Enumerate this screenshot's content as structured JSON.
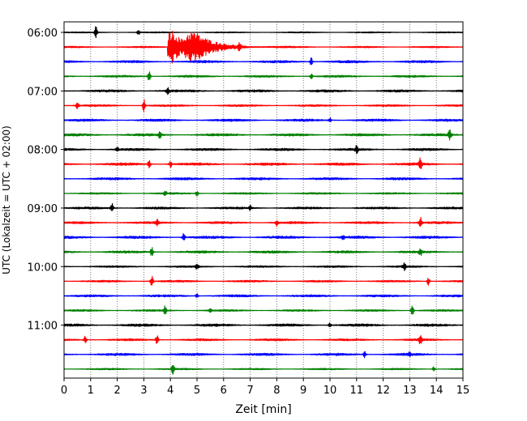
{
  "chart_data": {
    "type": "line",
    "title": "",
    "xlabel": "Zeit  [min]",
    "ylabel": "UTC (Lokalzeit = UTC + 02:00)",
    "xlim": [
      0,
      15
    ],
    "x_ticks": [
      "0",
      "1",
      "2",
      "3",
      "4",
      "5",
      "6",
      "7",
      "8",
      "9",
      "10",
      "11",
      "12",
      "13",
      "14",
      "15"
    ],
    "y_ticks": [
      "06:00",
      "07:00",
      "08:00",
      "09:00",
      "10:00",
      "11:00"
    ],
    "grid": "vertical-dotted",
    "trace_interval_minutes": 15,
    "first_trace": "06:00",
    "colors": [
      "#000000",
      "#ff0000",
      "#0000ff",
      "#008000"
    ],
    "series": [
      {
        "start": "06:00",
        "color": "#000000",
        "baseline": 0.8,
        "events": [
          [
            1.2,
            8
          ],
          [
            2.8,
            3
          ]
        ]
      },
      {
        "start": "06:15",
        "color": "#ff0000",
        "baseline": 1.0,
        "events": [
          [
            4.8,
            20,
            "quake"
          ],
          [
            6.6,
            5
          ]
        ]
      },
      {
        "start": "06:30",
        "color": "#0000ff",
        "baseline": 1.5,
        "events": [
          [
            9.3,
            5
          ]
        ]
      },
      {
        "start": "06:45",
        "color": "#008000",
        "baseline": 1.3,
        "events": [
          [
            3.2,
            6
          ],
          [
            9.3,
            3
          ]
        ]
      },
      {
        "start": "07:00",
        "color": "#000000",
        "baseline": 1.5,
        "events": [
          [
            3.9,
            5
          ]
        ]
      },
      {
        "start": "07:15",
        "color": "#ff0000",
        "baseline": 1.2,
        "events": [
          [
            0.5,
            4
          ],
          [
            3.0,
            8
          ]
        ]
      },
      {
        "start": "07:30",
        "color": "#0000ff",
        "baseline": 1.5,
        "events": [
          [
            10.0,
            3
          ]
        ]
      },
      {
        "start": "07:45",
        "color": "#008000",
        "baseline": 1.6,
        "events": [
          [
            3.6,
            4
          ],
          [
            14.5,
            8
          ]
        ]
      },
      {
        "start": "08:00",
        "color": "#000000",
        "baseline": 1.5,
        "events": [
          [
            2.0,
            3
          ],
          [
            11.0,
            5
          ]
        ]
      },
      {
        "start": "08:15",
        "color": "#ff0000",
        "baseline": 1.6,
        "events": [
          [
            3.2,
            5
          ],
          [
            4.0,
            4
          ],
          [
            13.4,
            7
          ]
        ]
      },
      {
        "start": "08:30",
        "color": "#0000ff",
        "baseline": 1.5,
        "events": []
      },
      {
        "start": "08:45",
        "color": "#008000",
        "baseline": 1.1,
        "events": [
          [
            3.8,
            4
          ],
          [
            5.0,
            3
          ]
        ]
      },
      {
        "start": "09:00",
        "color": "#000000",
        "baseline": 1.4,
        "events": [
          [
            1.8,
            6
          ],
          [
            7.0,
            3
          ]
        ]
      },
      {
        "start": "09:15",
        "color": "#ff0000",
        "baseline": 1.4,
        "events": [
          [
            3.5,
            4
          ],
          [
            8.0,
            4
          ],
          [
            13.4,
            8
          ]
        ]
      },
      {
        "start": "09:30",
        "color": "#0000ff",
        "baseline": 1.6,
        "events": [
          [
            4.5,
            5
          ],
          [
            10.5,
            3
          ]
        ]
      },
      {
        "start": "09:45",
        "color": "#008000",
        "baseline": 1.5,
        "events": [
          [
            3.3,
            6
          ],
          [
            13.4,
            5
          ]
        ]
      },
      {
        "start": "10:00",
        "color": "#000000",
        "baseline": 1.2,
        "events": [
          [
            5.0,
            3
          ],
          [
            12.8,
            6
          ]
        ]
      },
      {
        "start": "10:15",
        "color": "#ff0000",
        "baseline": 1.2,
        "events": [
          [
            3.3,
            7
          ],
          [
            13.7,
            5
          ]
        ]
      },
      {
        "start": "10:30",
        "color": "#0000ff",
        "baseline": 1.4,
        "events": [
          [
            5.0,
            3
          ]
        ]
      },
      {
        "start": "10:45",
        "color": "#008000",
        "baseline": 1.2,
        "events": [
          [
            3.8,
            6
          ],
          [
            5.5,
            3
          ],
          [
            13.1,
            6
          ]
        ]
      },
      {
        "start": "11:00",
        "color": "#000000",
        "baseline": 1.6,
        "events": [
          [
            10.0,
            3
          ]
        ]
      },
      {
        "start": "11:15",
        "color": "#ff0000",
        "baseline": 1.3,
        "events": [
          [
            0.8,
            5
          ],
          [
            3.5,
            6
          ],
          [
            13.4,
            6
          ]
        ]
      },
      {
        "start": "11:30",
        "color": "#0000ff",
        "baseline": 1.5,
        "events": [
          [
            11.3,
            4
          ],
          [
            13.0,
            3
          ]
        ]
      },
      {
        "start": "11:45",
        "color": "#008000",
        "baseline": 1.0,
        "events": [
          [
            4.1,
            7
          ],
          [
            13.9,
            3
          ]
        ]
      }
    ]
  }
}
